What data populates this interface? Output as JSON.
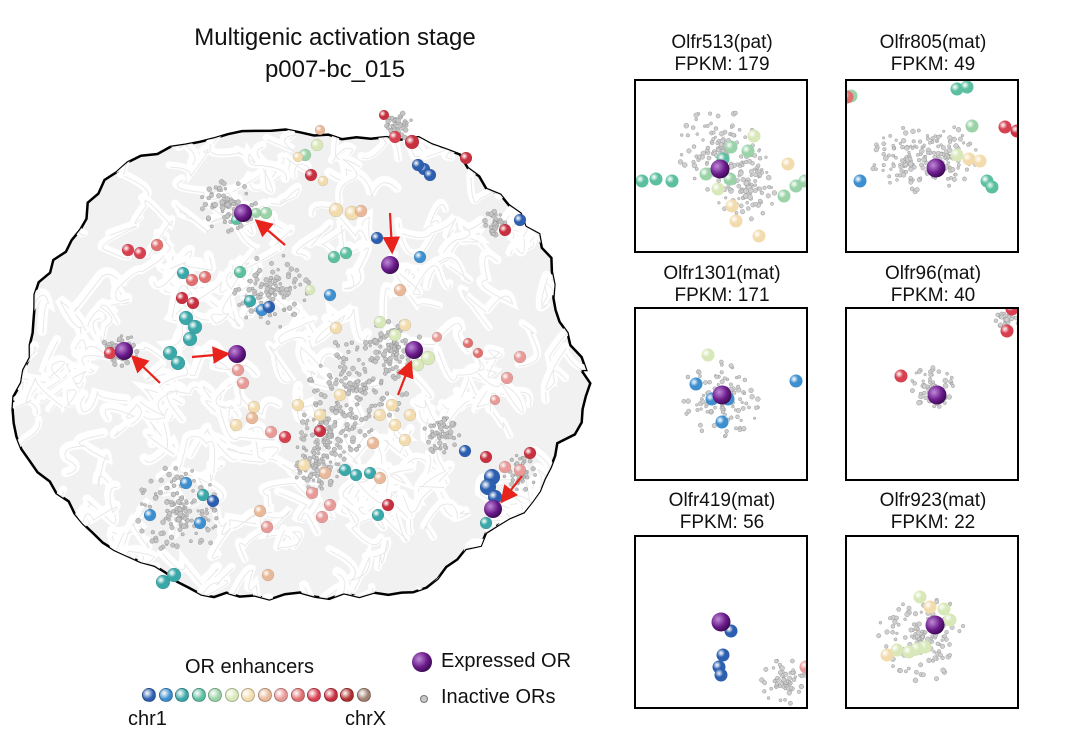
{
  "figure": {
    "title_line1": "Multigenic activation stage",
    "title_line2": "p007-bc_015"
  },
  "panels": [
    {
      "gene": "Olfr513(pat)",
      "fpkm": "FPKM: 179"
    },
    {
      "gene": "Olfr805(mat)",
      "fpkm": "FPKM: 49"
    },
    {
      "gene": "Olfr1301(mat)",
      "fpkm": "FPKM: 171"
    },
    {
      "gene": "Olfr96(mat)",
      "fpkm": "FPKM: 40"
    },
    {
      "gene": "Olfr419(mat)",
      "fpkm": "FPKM: 56"
    },
    {
      "gene": "Olfr923(mat)",
      "fpkm": "FPKM: 22"
    }
  ],
  "legend": {
    "enhancers_title": "OR enhancers",
    "chr_start": "chr1",
    "chr_end": "chrX",
    "expressed_label": "Expressed OR",
    "inactive_label": "Inactive ORs"
  },
  "colors": {
    "expressed_or": "#6a1b8a",
    "inactive_or": "#b8b8b8",
    "nucleus_outline": "#000000",
    "chromatin": "#e6e6e6",
    "arrow": "#e8231c",
    "colorbar": [
      "#2c5fb0",
      "#3d8fd0",
      "#3aa7a8",
      "#5cbfa0",
      "#9ad3a8",
      "#d8e8b8",
      "#f2dcae",
      "#e8b898",
      "#e89a98",
      "#e07070",
      "#d84050",
      "#c83040",
      "#b03030",
      "#a08070"
    ]
  }
}
